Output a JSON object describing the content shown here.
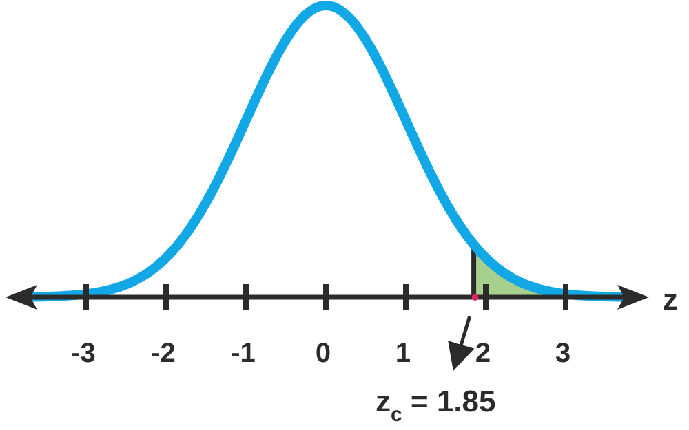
{
  "chart_data": {
    "type": "area",
    "distribution": "standard normal",
    "xlabel": "z",
    "xlim": [
      -3.7,
      3.7
    ],
    "ticks": [
      -3,
      -2,
      -1,
      0,
      1,
      2,
      3
    ],
    "tick_labels": [
      "-3",
      "-2",
      "-1",
      "0",
      "1",
      "2",
      "3"
    ],
    "critical_value": 1.85,
    "critical_label": {
      "symbol": "z",
      "subscript": "c",
      "text": " = 1.85"
    },
    "shaded_region": {
      "from": 1.85,
      "to": 3.7
    },
    "grid": false,
    "colors": {
      "curve": "#12a8e6",
      "shade": "#a8d08d",
      "axis": "#2b2b2b",
      "critical_marker": "#e0245e"
    }
  }
}
